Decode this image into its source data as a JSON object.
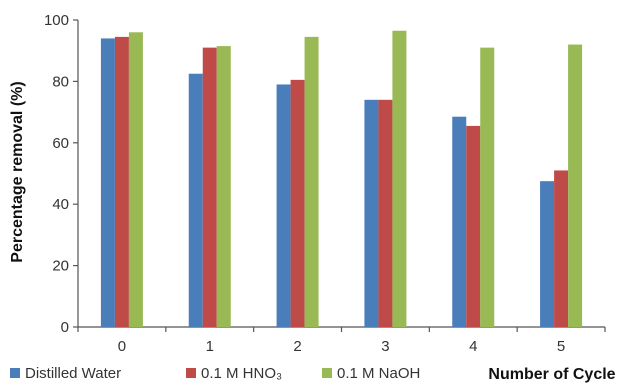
{
  "chart_data": {
    "type": "bar",
    "title": "",
    "xlabel": "Number of Cycle",
    "ylabel": "Percentage removal (%)",
    "categories": [
      "0",
      "1",
      "2",
      "3",
      "4",
      "5"
    ],
    "ylim": [
      0,
      100
    ],
    "yticks": [
      0,
      20,
      40,
      60,
      80,
      100
    ],
    "grid": false,
    "legend_position": "bottom-left",
    "series": [
      {
        "name": "Distilled Water",
        "legend_label": "Distilled Water",
        "color": "#4a7ebb",
        "values": [
          94,
          82.5,
          79,
          74,
          68.5,
          47.5
        ]
      },
      {
        "name": "0.1 M HNO3",
        "legend_label": "0.1 M HNO₃",
        "color": "#be4b48",
        "values": [
          94.5,
          91,
          80.5,
          74,
          65.5,
          51
        ]
      },
      {
        "name": "0.1 M NaOH",
        "legend_label": "0.1 M NaOH",
        "color": "#98b954",
        "values": [
          96,
          91.5,
          94.5,
          96.5,
          91,
          92
        ]
      }
    ]
  }
}
